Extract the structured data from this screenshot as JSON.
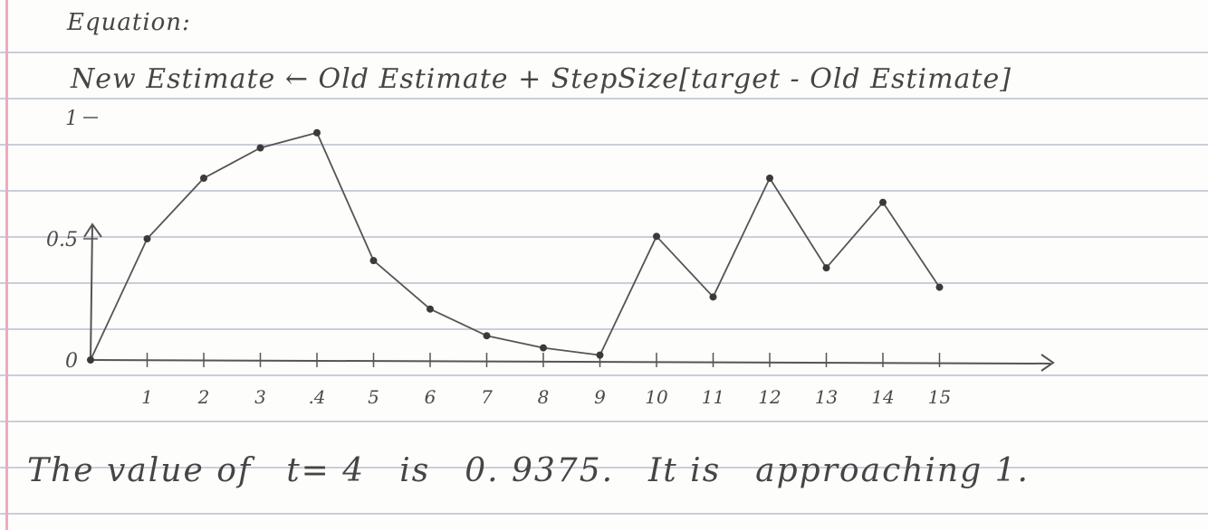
{
  "equation": {
    "title": "Equation:",
    "formula": "New Estimate ← Old Estimate + StepSize[target - Old Estimate]"
  },
  "chart_data": {
    "type": "line",
    "title": "",
    "xlabel": "",
    "ylabel": "",
    "x": [
      0,
      1,
      2,
      3,
      4,
      5,
      6,
      7,
      8,
      9,
      10,
      11,
      12,
      13,
      14,
      15
    ],
    "values": [
      0,
      0.5,
      0.75,
      0.875,
      0.9375,
      0.41,
      0.21,
      0.1,
      0.05,
      0.02,
      0.51,
      0.26,
      0.75,
      0.38,
      0.65,
      0.3
    ],
    "x_tick_labels": [
      "1",
      "2",
      "3",
      ".4",
      "5",
      "6",
      "7",
      "8",
      "9",
      "10",
      "11",
      "12",
      "13",
      "14",
      "15"
    ],
    "y_tick_labels": [
      "0",
      "0.5",
      "1"
    ],
    "xlim": [
      0,
      16
    ],
    "ylim": [
      0,
      1.1
    ],
    "grid": false,
    "line_color": "#555555"
  },
  "conclusion": {
    "parts": [
      "The value of",
      "t= 4",
      "is",
      "0. 9375.",
      "It is",
      "approaching 1."
    ]
  }
}
